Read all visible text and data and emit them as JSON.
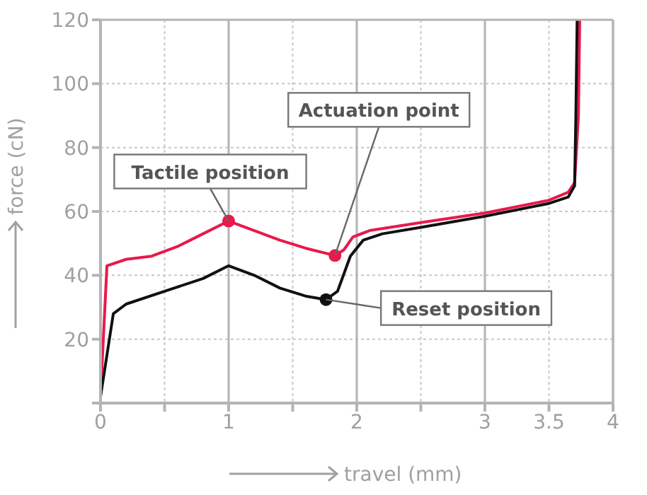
{
  "chart_data": {
    "type": "line",
    "xlabel": "travel (mm)",
    "ylabel": "force (cN)",
    "xlim": [
      0,
      4
    ],
    "ylim": [
      0,
      120
    ],
    "xticks": [
      0,
      {
        "value": 0.5,
        "label": null
      },
      1,
      {
        "value": 1.5,
        "label": null
      },
      2,
      {
        "value": 2.5,
        "label": null
      },
      3,
      3.5,
      4
    ],
    "yticks": [
      {
        "value": 0,
        "label": null
      },
      20,
      40,
      60,
      80,
      100,
      120
    ],
    "grid": true,
    "line_style": "solid",
    "marker": "none",
    "series": [
      {
        "color": "#e8194b",
        "x": [
          0,
          0.05,
          0.2,
          0.4,
          0.6,
          0.8,
          1,
          1.2,
          1.4,
          1.6,
          1.83,
          1.9,
          1.97,
          2.1,
          2.5,
          3,
          3.5,
          3.65,
          3.7,
          3.73,
          3.74
        ],
        "values": [
          2,
          43,
          45,
          46,
          49,
          53,
          57,
          54,
          51,
          48.5,
          46.2,
          48,
          52,
          54,
          56.5,
          59.5,
          63.5,
          66,
          69,
          90,
          120
        ]
      },
      {
        "color": "#111111",
        "x": [
          0,
          0.1,
          0.2,
          0.5,
          0.8,
          1,
          1.2,
          1.4,
          1.6,
          1.76,
          1.85,
          1.95,
          2.05,
          2.2,
          2.5,
          3,
          3.5,
          3.65,
          3.7,
          3.71,
          3.72
        ],
        "values": [
          2,
          28,
          31,
          35,
          39,
          43,
          40,
          36,
          33.5,
          32.4,
          35,
          46,
          51,
          53,
          55,
          58.5,
          62.5,
          64.5,
          68,
          90,
          120
        ]
      },
      {
        "type": "scatter",
        "color": "#e8194b",
        "marker": "circle",
        "x": [
          1,
          1.83
        ],
        "values": [
          57,
          46.2
        ]
      },
      {
        "type": "scatter",
        "color": "#111111",
        "marker": "circle",
        "x": [
          1.76
        ],
        "values": [
          32.4
        ]
      }
    ],
    "annotations": [
      {
        "text": "Tactile position",
        "x": 1,
        "y": 57
      },
      {
        "text": "Actuation point",
        "x": 1.83,
        "y": 46.2
      },
      {
        "text": "Reset position",
        "x": 1.76,
        "y": 32.4
      }
    ]
  }
}
